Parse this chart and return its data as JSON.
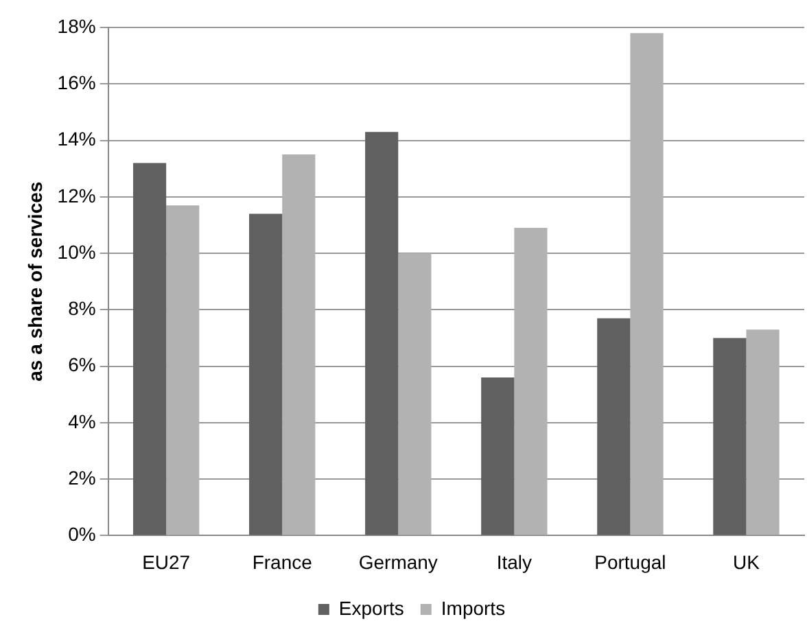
{
  "chart_data": {
    "type": "bar",
    "ylabel": "as a share of services",
    "categories": [
      "EU27",
      "France",
      "Germany",
      "Italy",
      "Portugal",
      "UK"
    ],
    "series": [
      {
        "name": "Exports",
        "color": "#606060",
        "values": [
          13.2,
          11.4,
          14.3,
          5.6,
          7.7,
          7.0
        ]
      },
      {
        "name": "Imports",
        "color": "#b2b2b2",
        "values": [
          11.7,
          13.5,
          10.0,
          10.9,
          17.8,
          7.3
        ]
      }
    ],
    "ylim": [
      0,
      18
    ],
    "yticks": [
      {
        "value": 0,
        "label": "0%"
      },
      {
        "value": 2,
        "label": "2%"
      },
      {
        "value": 4,
        "label": "4%"
      },
      {
        "value": 6,
        "label": "6%"
      },
      {
        "value": 8,
        "label": "8%"
      },
      {
        "value": 10,
        "label": "10%"
      },
      {
        "value": 12,
        "label": "12%"
      },
      {
        "value": 14,
        "label": "14%"
      },
      {
        "value": 16,
        "label": "16%"
      },
      {
        "value": 18,
        "label": "18%"
      }
    ],
    "grid": "y",
    "legend": "bottom"
  }
}
